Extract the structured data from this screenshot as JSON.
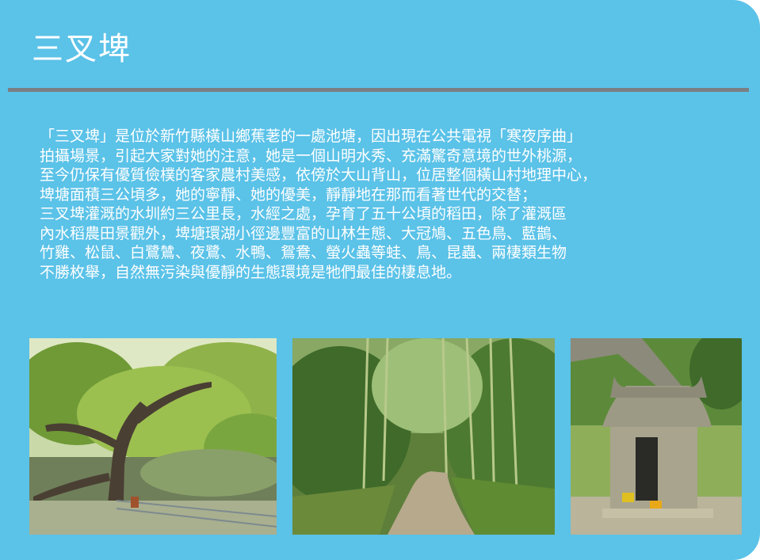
{
  "page": {
    "title": "三叉埤"
  },
  "description_lines": [
    "「三叉埤」是位於新竹縣橫山鄉蕉荖的一處池塘，因出現在公共電視「寒夜序曲」",
    "拍攝場景，引起大家對她的注意，她是一個山明水秀、充滿驚奇意境的世外桃源，",
    "至今仍保有優質儉樸的客家農村美感，依傍於大山背山，位居整個橫山村地理中心，",
    "埤塘面積三公頃多，她的寧靜、她的優美，靜靜地在那而看著世代的交替；",
    "三叉埤灌溉的水圳約三公里長，水經之處，孕育了五十公頃的稻田，除了灌溉區",
    "內水稻農田景觀外，埤塘環湖小徑邊豐富的山林生態、大冠鳩、五色鳥、藍鵲、",
    "竹雞、松鼠、白鷺鷥、夜鷺、水鴨、鴛鴦、螢火蟲等蛙、鳥、昆蟲、兩棲類生物",
    "不勝枚舉，自然無污染與優靜的生態環境是牠們最佳的棲息地。"
  ],
  "photos": [
    {
      "icon": "pond-tree-photo"
    },
    {
      "icon": "bamboo-trail-photo"
    },
    {
      "icon": "earth-god-shrine-photo"
    }
  ],
  "colors": {
    "background": "#5bc2e8",
    "rule": "#7a7f84",
    "text": "#ffffff"
  }
}
